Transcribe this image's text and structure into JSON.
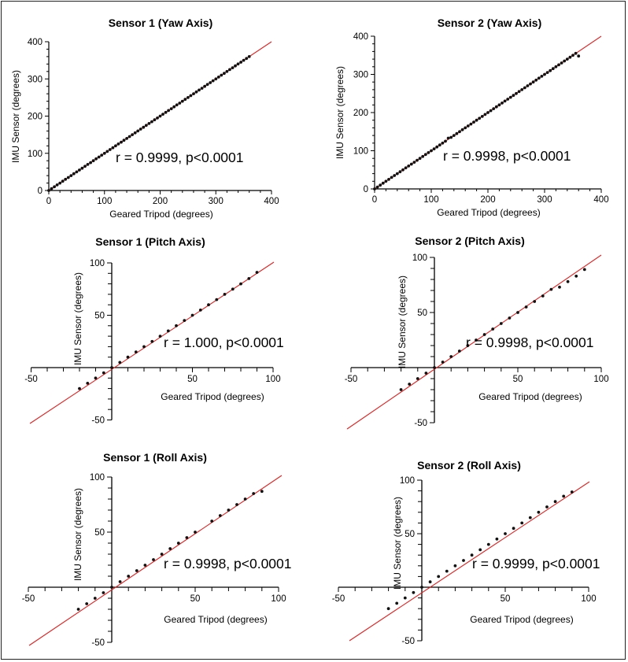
{
  "colors": {
    "fit_line": "#e02020",
    "point": "#111111",
    "axis": "#000000"
  },
  "chart_data": [
    {
      "id": "s1-yaw",
      "type": "scatter",
      "kind": "yaw",
      "title": "Sensor 1 (Yaw Axis)",
      "xlabel": "Geared Tripod (degrees)",
      "ylabel": "IMU Sensor (degrees)",
      "xlim": [
        0,
        400
      ],
      "ylim": [
        0,
        400
      ],
      "xticks": [
        0,
        100,
        200,
        300,
        400
      ],
      "yticks": [
        0,
        100,
        200,
        300,
        400
      ],
      "annotation": "r = 0.9999, p<0.0001",
      "fit": {
        "slope": 1.0,
        "intercept": 0,
        "x_range": [
          0,
          400
        ]
      },
      "x": [
        0,
        5,
        10,
        15,
        20,
        25,
        30,
        35,
        40,
        45,
        50,
        55,
        60,
        65,
        70,
        75,
        80,
        85,
        90,
        95,
        100,
        105,
        110,
        115,
        120,
        125,
        130,
        135,
        140,
        145,
        150,
        155,
        160,
        165,
        170,
        175,
        180,
        185,
        190,
        195,
        200,
        205,
        210,
        215,
        220,
        225,
        230,
        235,
        240,
        245,
        250,
        255,
        260,
        265,
        270,
        275,
        280,
        285,
        290,
        295,
        300,
        305,
        310,
        315,
        320,
        325,
        330,
        335,
        340,
        345,
        350,
        355,
        360
      ],
      "y": [
        0,
        5,
        10,
        15,
        20,
        25,
        30,
        35,
        40,
        45,
        50,
        55,
        60,
        65,
        70,
        75,
        80,
        85,
        90,
        95,
        100,
        105,
        110,
        115,
        120,
        125,
        130,
        135,
        140,
        145,
        150,
        155,
        160,
        165,
        170,
        175,
        180,
        185,
        190,
        195,
        200,
        205,
        210,
        215,
        220,
        225,
        230,
        235,
        240,
        245,
        250,
        255,
        260,
        265,
        270,
        275,
        280,
        285,
        290,
        295,
        300,
        305,
        310,
        315,
        320,
        325,
        330,
        335,
        340,
        345,
        350,
        355,
        360
      ]
    },
    {
      "id": "s2-yaw",
      "type": "scatter",
      "kind": "yaw",
      "title": "Sensor 2 (Yaw Axis)",
      "xlabel": "Geared Tripod (degrees)",
      "ylabel": "IMU Sensor (degrees)",
      "xlim": [
        0,
        400
      ],
      "ylim": [
        0,
        400
      ],
      "xticks": [
        0,
        100,
        200,
        300,
        400
      ],
      "yticks": [
        0,
        100,
        200,
        300,
        400
      ],
      "annotation": "r = 0.9998, p<0.0001",
      "fit": {
        "slope": 1.0,
        "intercept": 0,
        "x_range": [
          0,
          400
        ]
      },
      "x": [
        0,
        5,
        10,
        15,
        20,
        25,
        30,
        35,
        40,
        45,
        50,
        55,
        60,
        65,
        70,
        75,
        80,
        85,
        90,
        95,
        100,
        105,
        110,
        115,
        120,
        125,
        130,
        135,
        140,
        145,
        150,
        155,
        160,
        165,
        170,
        175,
        180,
        185,
        190,
        195,
        200,
        205,
        210,
        215,
        220,
        225,
        230,
        235,
        240,
        245,
        250,
        255,
        260,
        265,
        270,
        275,
        280,
        285,
        290,
        295,
        300,
        305,
        310,
        315,
        320,
        325,
        330,
        335,
        340,
        345,
        350,
        355,
        360
      ],
      "y": [
        0,
        5,
        10,
        15,
        20,
        25,
        30,
        35,
        40,
        45,
        50,
        55,
        60,
        65,
        70,
        75,
        80,
        85,
        90,
        95,
        100,
        105,
        110,
        115,
        120,
        125,
        133,
        135,
        140,
        145,
        150,
        155,
        160,
        165,
        170,
        175,
        180,
        185,
        190,
        195,
        200,
        205,
        210,
        215,
        220,
        225,
        230,
        235,
        240,
        245,
        250,
        255,
        260,
        265,
        270,
        275,
        280,
        285,
        290,
        295,
        300,
        305,
        310,
        315,
        320,
        325,
        330,
        335,
        340,
        345,
        350,
        355,
        348
      ]
    },
    {
      "id": "s1-pitch",
      "type": "scatter",
      "kind": "centered",
      "title": "Sensor 1 (Pitch Axis)",
      "xlabel": "Geared Tripod (degrees)",
      "ylabel": "IMU Sensor (degrees)",
      "xlim": [
        -50,
        100
      ],
      "ylim": [
        -50,
        100
      ],
      "xticks": [
        -50,
        50,
        100
      ],
      "yticks": [
        -50,
        50,
        100
      ],
      "annotation": "r = 1.000, p<0.0001",
      "fit": {
        "slope": 1.0,
        "intercept": 0,
        "x_range": [
          -50,
          100
        ]
      },
      "x": [
        -20,
        -15,
        -10,
        -5,
        0,
        5,
        10,
        15,
        20,
        25,
        30,
        35,
        40,
        45,
        50,
        55,
        60,
        65,
        70,
        75,
        80,
        85,
        90
      ],
      "y": [
        -20,
        -15,
        -10,
        -5,
        0,
        5,
        10,
        15,
        20,
        25,
        30,
        35,
        40,
        45,
        50,
        55,
        60,
        65,
        70,
        75,
        80,
        85,
        91
      ]
    },
    {
      "id": "s2-pitch",
      "type": "scatter",
      "kind": "centered",
      "title": "Sensor 2 (Pitch Axis)",
      "xlabel": "Geared Tripod (degrees)",
      "ylabel": "IMU Sensor (degrees)",
      "xlim": [
        -50,
        100
      ],
      "ylim": [
        -50,
        100
      ],
      "xticks": [
        -50,
        50,
        100
      ],
      "yticks": [
        -50,
        50,
        100
      ],
      "annotation": "r = 0.9998, p<0.0001",
      "fit": {
        "slope": 1.0,
        "intercept": 0,
        "x_range": [
          -50,
          100
        ]
      },
      "x": [
        -20,
        -15,
        -10,
        -5,
        0,
        5,
        10,
        15,
        20,
        25,
        30,
        35,
        40,
        45,
        50,
        55,
        60,
        65,
        70,
        75,
        80,
        85,
        90
      ],
      "y": [
        -20,
        -15,
        -10,
        -5,
        0,
        5,
        10,
        15,
        20,
        25,
        30,
        35,
        40,
        45,
        50,
        55,
        60,
        65,
        71,
        73,
        78,
        83,
        89
      ]
    },
    {
      "id": "s1-roll",
      "type": "scatter",
      "kind": "centered",
      "title": "Sensor 1 (Roll Axis)",
      "xlabel": "Geared Tripod (degrees)",
      "ylabel": "IMU Sensor (degrees)",
      "xlim": [
        -50,
        100
      ],
      "ylim": [
        -50,
        100
      ],
      "xticks": [
        -50,
        50,
        100
      ],
      "yticks": [
        -50,
        50,
        100
      ],
      "annotation": "r = 0.9998, p<0.0001",
      "fit": {
        "slope": 1.0,
        "intercept": 0,
        "x_range": [
          -50,
          100
        ]
      },
      "x": [
        -20,
        -15,
        -10,
        -5,
        0,
        5,
        10,
        15,
        20,
        25,
        30,
        35,
        40,
        45,
        50,
        60,
        65,
        70,
        75,
        80,
        85,
        90
      ],
      "y": [
        -20,
        -15,
        -10,
        -5,
        0,
        5,
        10,
        15,
        20,
        25,
        30,
        35,
        40,
        45,
        50,
        60,
        65,
        70,
        75,
        80,
        85,
        87
      ]
    },
    {
      "id": "s2-roll",
      "type": "scatter",
      "kind": "centered",
      "title": "Sensor 2 (Roll Axis)",
      "xlabel": "Geared Tripod (degrees)",
      "ylabel": "IMU Sensor (degrees)",
      "xlim": [
        -50,
        100
      ],
      "ylim": [
        -50,
        100
      ],
      "xticks": [
        -50,
        50,
        100
      ],
      "yticks": [
        -50,
        50,
        100
      ],
      "annotation": "r = 0.9999, p<0.0001",
      "fit": {
        "slope": 1.0,
        "intercept": 0,
        "x_range": [
          -50,
          100
        ]
      },
      "x": [
        -20,
        -15,
        -10,
        -5,
        0,
        5,
        10,
        15,
        20,
        25,
        30,
        35,
        40,
        45,
        50,
        55,
        60,
        65,
        70,
        75,
        80,
        85,
        90
      ],
      "y": [
        -20,
        -15,
        -10,
        -5,
        0,
        5,
        10,
        15,
        20,
        25,
        30,
        35,
        40,
        45,
        50,
        55,
        60,
        65,
        70,
        75,
        80,
        85,
        89
      ]
    }
  ]
}
